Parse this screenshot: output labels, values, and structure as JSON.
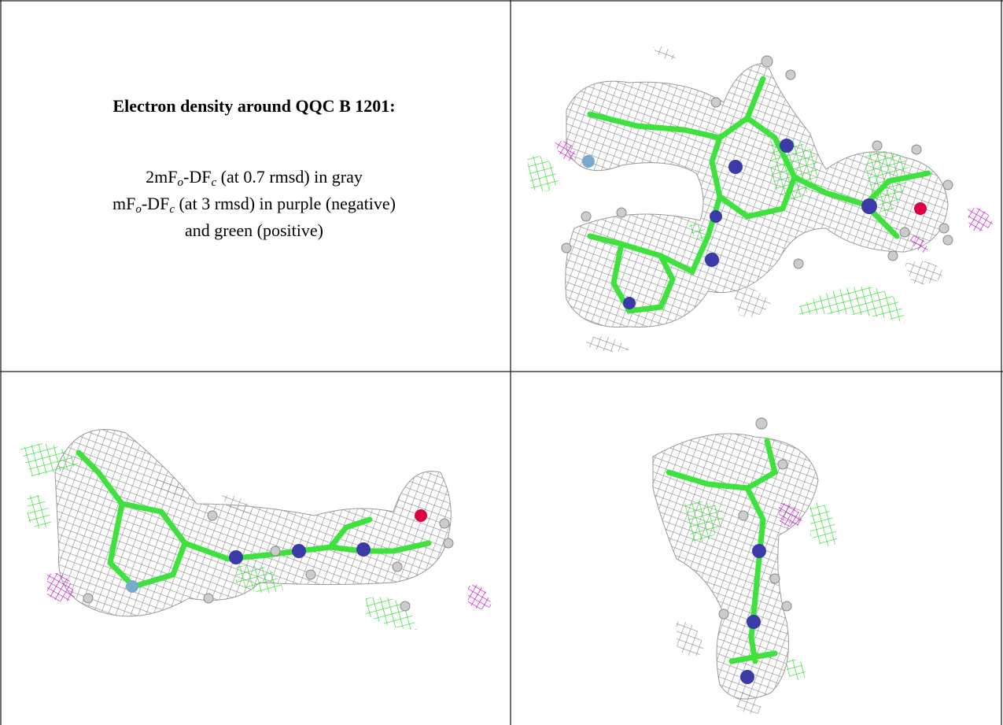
{
  "figure": {
    "title": "Electron density around QQC B 1201:",
    "legend_lines": [
      [
        "2mF",
        "o",
        "-DF",
        "c",
        " (at 0.7 rmsd) in gray"
      ],
      [
        "mF",
        "o",
        "-DF",
        "c",
        " (at 3 rmsd) in purple (negative)"
      ],
      [
        "and green (positive)"
      ]
    ]
  }
}
